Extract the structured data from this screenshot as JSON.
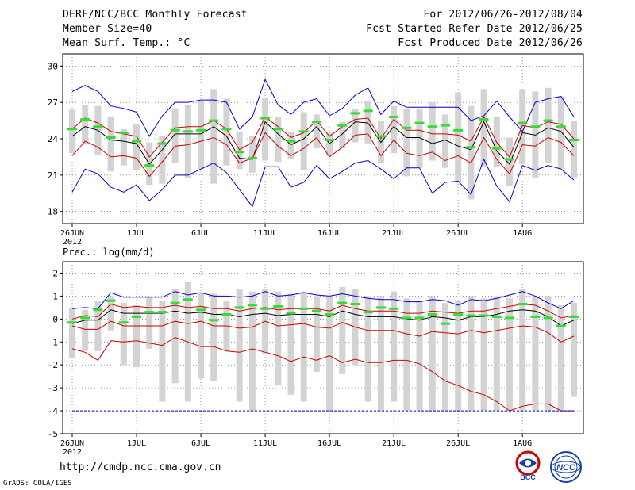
{
  "header": {
    "title": "DERF/NCC/BCC Monthly Forecast",
    "member_size": "Member Size=40",
    "variable1": "Mean Surf. Temp.: °C",
    "period": "For 2012/06/26-2012/08/04",
    "fcst_started": "Fcst Started Refer Date 2012/06/25",
    "fcst_produced": "Fcst Produced Date 2012/06/26"
  },
  "footer": {
    "url": "http://cmdp.ncc.cma.gov.cn",
    "credit": "GrADS: COLA/IGES",
    "logo_bcc": "BCC",
    "logo_ncc": "NCC"
  },
  "chart_data": [
    {
      "type": "line",
      "title": "Mean Surf. Temp.: °C",
      "ylim": [
        17,
        31
      ],
      "yticks": [
        18,
        21,
        24,
        27,
        30
      ],
      "x": [
        1,
        2,
        3,
        4,
        5,
        6,
        7,
        8,
        9,
        10,
        11,
        12,
        13,
        14,
        15,
        16,
        17,
        18,
        19,
        20,
        21,
        22,
        23,
        24,
        25,
        26,
        27,
        28,
        29,
        30,
        31,
        32,
        33,
        34,
        35,
        36,
        37,
        38,
        39,
        40
      ],
      "xticks": [
        1,
        6,
        11,
        16,
        21,
        26,
        31,
        36
      ],
      "xticklabels": [
        "26JUN",
        "1JUL",
        "6JUL",
        "11JUL",
        "16JUL",
        "21JUL",
        "26JUL",
        "1AUG"
      ],
      "year_label": "2012",
      "series": [
        {
          "name": "max",
          "color": "#0000cc",
          "values": [
            27.9,
            28.4,
            27.9,
            26.7,
            26.5,
            26.2,
            24.2,
            25.9,
            27.0,
            27.0,
            27.2,
            27.2,
            27.0,
            24.8,
            25.8,
            28.9,
            26.8,
            26.0,
            27.0,
            27.3,
            25.9,
            26.5,
            27.6,
            28.2,
            26.0,
            27.1,
            26.6,
            26.6,
            26.6,
            26.6,
            26.6,
            25.5,
            25.9,
            27.1,
            25.8,
            24.6,
            27.0,
            27.3,
            27.5,
            25.8
          ]
        },
        {
          "name": "upper",
          "color": "#cc0000",
          "values": [
            24.8,
            25.7,
            25.3,
            24.6,
            24.4,
            24.2,
            22.5,
            23.7,
            24.9,
            25.0,
            25.0,
            25.5,
            24.8,
            23.1,
            23.7,
            25.8,
            25.0,
            24.1,
            24.5,
            25.5,
            24.2,
            25.0,
            25.6,
            25.7,
            24.0,
            25.6,
            24.7,
            24.7,
            24.4,
            24.4,
            24.3,
            23.8,
            25.8,
            23.7,
            22.5,
            25.1,
            24.9,
            25.4,
            25.2,
            24.0
          ]
        },
        {
          "name": "mean",
          "color": "#000000",
          "values": [
            24.2,
            25.0,
            24.7,
            23.9,
            23.8,
            23.6,
            21.9,
            23.1,
            24.4,
            24.4,
            24.4,
            25.0,
            24.2,
            22.4,
            22.3,
            25.4,
            24.4,
            23.5,
            24.0,
            25.0,
            23.6,
            24.4,
            25.4,
            25.3,
            23.7,
            25.0,
            24.1,
            24.1,
            23.6,
            23.9,
            23.4,
            23.1,
            25.4,
            23.0,
            21.9,
            24.5,
            24.3,
            24.9,
            24.6,
            23.3
          ]
        },
        {
          "name": "lower",
          "color": "#cc0000",
          "values": [
            22.6,
            23.8,
            23.3,
            22.5,
            22.6,
            22.4,
            20.9,
            22.1,
            23.4,
            23.5,
            23.8,
            24.1,
            23.5,
            22.0,
            22.4,
            24.5,
            23.4,
            22.6,
            23.2,
            24.1,
            22.5,
            23.3,
            24.3,
            24.4,
            22.6,
            23.9,
            22.8,
            22.6,
            22.9,
            22.2,
            22.6,
            22.0,
            24.1,
            22.3,
            21.1,
            23.5,
            23.4,
            24.1,
            23.7,
            22.6
          ]
        },
        {
          "name": "min",
          "color": "#0000cc",
          "values": [
            19.6,
            21.5,
            21.1,
            20.0,
            19.6,
            20.2,
            18.9,
            19.8,
            21.0,
            21.0,
            21.5,
            22.0,
            21.2,
            19.8,
            18.4,
            21.7,
            21.7,
            20.0,
            20.4,
            21.8,
            20.7,
            21.3,
            22.0,
            22.2,
            21.5,
            20.7,
            21.6,
            21.6,
            19.5,
            20.4,
            20.5,
            19.4,
            22.3,
            20.1,
            18.8,
            21.8,
            21.4,
            21.8,
            21.5,
            20.6
          ]
        },
        {
          "name": "observed",
          "color": "#33dd33",
          "style": "dash-marker",
          "values": [
            24.8,
            25.6,
            25.0,
            24.1,
            24.5,
            23.8,
            21.8,
            23.6,
            24.7,
            24.6,
            24.7,
            25.5,
            24.8,
            22.9,
            22.4,
            25.7,
            24.8,
            23.8,
            24.6,
            25.4,
            23.9,
            25.1,
            26.1,
            26.3,
            24.2,
            25.8,
            24.9,
            25.3,
            25.0,
            25.1,
            24.7,
            23.3,
            25.6,
            23.2,
            22.3,
            25.3,
            25.0,
            25.5,
            25.0,
            23.9
          ]
        },
        {
          "name": "spread_low",
          "color": "#d3d3d3",
          "style": "bar-range",
          "values": [
            22.8,
            23.6,
            22.7,
            21.3,
            21.8,
            21.4,
            20.2,
            20.3,
            22.0,
            20.8,
            21.5,
            20.3,
            21.8,
            21.5,
            21.2,
            22.2,
            22.1,
            22.3,
            21.4,
            23.2,
            22.6,
            23.2,
            23.7,
            23.6,
            22.0,
            22.8,
            20.9,
            21.6,
            22.2,
            21.6,
            20.4,
            19.0,
            21.7,
            21.7,
            20.1,
            21.9,
            20.8,
            22.0,
            21.5,
            20.8
          ]
        },
        {
          "name": "spread_high",
          "color": "#d3d3d3",
          "style": "bar-range",
          "values": [
            26.4,
            26.8,
            26.7,
            25.8,
            24.8,
            25.2,
            23.7,
            24.2,
            26.5,
            26.8,
            27.1,
            28.1,
            27.3,
            24.6,
            24.2,
            27.4,
            25.8,
            24.6,
            26.2,
            26.0,
            24.5,
            25.4,
            26.5,
            27.1,
            25.5,
            26.7,
            26.5,
            26.5,
            27.0,
            26.0,
            27.8,
            26.7,
            28.1,
            25.8,
            24.1,
            28.1,
            27.9,
            28.2,
            27.5,
            25.5
          ]
        }
      ]
    },
    {
      "type": "line",
      "title": "Prec.: log(mm/d)",
      "ylim": [
        -5,
        2.5
      ],
      "yticks": [
        -5,
        -4,
        -3,
        -2,
        -1,
        0,
        1,
        2
      ],
      "x": [
        1,
        2,
        3,
        4,
        5,
        6,
        7,
        8,
        9,
        10,
        11,
        12,
        13,
        14,
        15,
        16,
        17,
        18,
        19,
        20,
        21,
        22,
        23,
        24,
        25,
        26,
        27,
        28,
        29,
        30,
        31,
        32,
        33,
        34,
        35,
        36,
        37,
        38,
        39,
        40
      ],
      "xticks": [
        1,
        6,
        11,
        16,
        21,
        26,
        31,
        36
      ],
      "xticklabels": [
        "26JUN",
        "1JUL",
        "6JUL",
        "11JUL",
        "16JUL",
        "21JUL",
        "26JUL",
        "1AUG"
      ],
      "year_label": "2012",
      "series": [
        {
          "name": "max",
          "color": "#0000cc",
          "values": [
            0.45,
            0.5,
            0.45,
            1.15,
            0.95,
            0.95,
            0.95,
            0.95,
            1.2,
            1.05,
            1.15,
            1.0,
            1.0,
            0.95,
            1.0,
            1.2,
            1.0,
            1.05,
            1.15,
            1.05,
            1.0,
            1.1,
            1.0,
            0.9,
            0.85,
            0.85,
            0.75,
            0.75,
            0.85,
            0.8,
            0.6,
            0.85,
            0.8,
            0.9,
            1.05,
            1.2,
            1.0,
            0.7,
            0.45,
            0.8
          ]
        },
        {
          "name": "upper",
          "color": "#cc0000",
          "values": [
            0.0,
            0.15,
            0.1,
            0.65,
            0.5,
            0.55,
            0.5,
            0.5,
            0.6,
            0.5,
            0.55,
            0.45,
            0.45,
            0.35,
            0.45,
            0.5,
            0.4,
            0.45,
            0.45,
            0.45,
            0.35,
            0.6,
            0.45,
            0.35,
            0.35,
            0.35,
            0.25,
            0.25,
            0.35,
            0.3,
            0.25,
            0.35,
            0.35,
            0.45,
            0.55,
            0.65,
            0.6,
            0.35,
            0.05,
            0.15
          ]
        },
        {
          "name": "mean",
          "color": "#000000",
          "values": [
            -0.2,
            -0.05,
            -0.05,
            0.4,
            0.25,
            0.25,
            0.25,
            0.25,
            0.35,
            0.25,
            0.3,
            0.2,
            0.2,
            0.1,
            0.2,
            0.25,
            0.15,
            0.2,
            0.2,
            0.2,
            0.1,
            0.35,
            0.2,
            0.1,
            0.1,
            0.1,
            0.0,
            -0.05,
            0.1,
            0.05,
            -0.05,
            0.1,
            0.1,
            0.2,
            0.35,
            0.4,
            0.35,
            0.1,
            -0.3,
            -0.05
          ]
        },
        {
          "name": "lower",
          "color": "#cc0000",
          "values": [
            -0.3,
            -0.45,
            -0.45,
            -0.1,
            -0.3,
            -0.3,
            -0.3,
            -0.3,
            -0.1,
            -0.2,
            -0.1,
            -0.3,
            -0.3,
            -0.4,
            -0.35,
            -0.1,
            -0.3,
            -0.25,
            -0.2,
            -0.35,
            -0.4,
            -0.15,
            -0.35,
            -0.5,
            -0.5,
            -0.5,
            -0.65,
            -0.75,
            -0.55,
            -0.6,
            -0.65,
            -0.5,
            -0.6,
            -0.5,
            -0.4,
            -0.3,
            -0.35,
            -0.6,
            -1.0,
            -0.75
          ]
        },
        {
          "name": "lower2",
          "color": "#cc0000",
          "values": [
            -1.3,
            -1.45,
            -1.8,
            -0.95,
            -1.0,
            -0.95,
            -1.05,
            -1.15,
            -0.8,
            -1.0,
            -1.2,
            -1.2,
            -1.4,
            -1.45,
            -1.3,
            -1.45,
            -1.6,
            -1.85,
            -1.65,
            -1.8,
            -1.6,
            -1.9,
            -1.75,
            -1.9,
            -1.9,
            -1.8,
            -1.8,
            -1.95,
            -2.3,
            -2.7,
            -2.9,
            -3.15,
            -3.3,
            -3.6,
            -4.0,
            -3.8,
            -3.7,
            -3.7,
            -4.0,
            -4.0
          ]
        },
        {
          "name": "floor",
          "color": "#0000cc",
          "style": "dashed",
          "values": [
            -4,
            -4,
            -4,
            -4,
            -4,
            -4,
            -4,
            -4,
            -4,
            -4,
            -4,
            -4,
            -4,
            -4,
            -4,
            -4,
            -4,
            -4,
            -4,
            -4,
            -4,
            -4,
            -4,
            -4,
            -4,
            -4,
            -4,
            -4,
            -4,
            -4,
            -4,
            -4,
            -4,
            -4,
            -4,
            -4,
            -4,
            -4,
            -4,
            -4
          ]
        },
        {
          "name": "observed",
          "color": "#33dd33",
          "style": "dash-marker",
          "values": [
            -0.15,
            0.05,
            0.4,
            0.8,
            -0.15,
            0.1,
            0.3,
            0.3,
            0.7,
            0.85,
            0.4,
            -0.05,
            0.2,
            0.5,
            0.6,
            0.45,
            0.55,
            0.25,
            0.45,
            0.35,
            0.2,
            0.7,
            0.65,
            0.3,
            0.5,
            0.45,
            0.05,
            0.05,
            0.2,
            -0.2,
            0.2,
            0.15,
            0.15,
            0.1,
            0.05,
            0.65,
            0.1,
            0.05,
            -0.3,
            0.1
          ]
        },
        {
          "name": "spread_low",
          "color": "#d3d3d3",
          "style": "bar-range",
          "values": [
            -1.7,
            -1.4,
            -1.4,
            -0.5,
            -2.0,
            -2.1,
            -1.3,
            -3.6,
            -2.8,
            -3.6,
            -2.6,
            -2.7,
            -1.4,
            -3.6,
            -4.0,
            -1.5,
            -2.9,
            -3.3,
            -3.6,
            -2.3,
            -4.0,
            -2.4,
            -2.0,
            -3.6,
            -4.0,
            -3.6,
            -4.0,
            -4.0,
            -4.0,
            -4.0,
            -4.0,
            -4.0,
            -4.0,
            -4.0,
            -4.0,
            -4.0,
            -4.0,
            -4.0,
            -4.0,
            -3.4
          ]
        },
        {
          "name": "spread_high",
          "color": "#d3d3d3",
          "style": "bar-range",
          "values": [
            0.5,
            0.4,
            0.8,
            1.0,
            0.7,
            0.6,
            1.0,
            0.8,
            1.3,
            1.6,
            1.1,
            1.1,
            0.8,
            1.3,
            1.2,
            1.3,
            1.2,
            1.1,
            1.2,
            1.0,
            1.0,
            1.4,
            1.3,
            1.0,
            1.0,
            1.2,
            0.9,
            0.8,
            1.0,
            0.7,
            0.8,
            1.0,
            0.9,
            1.0,
            0.9,
            1.3,
            1.0,
            1.0,
            0.6,
            0.7
          ]
        }
      ]
    }
  ]
}
